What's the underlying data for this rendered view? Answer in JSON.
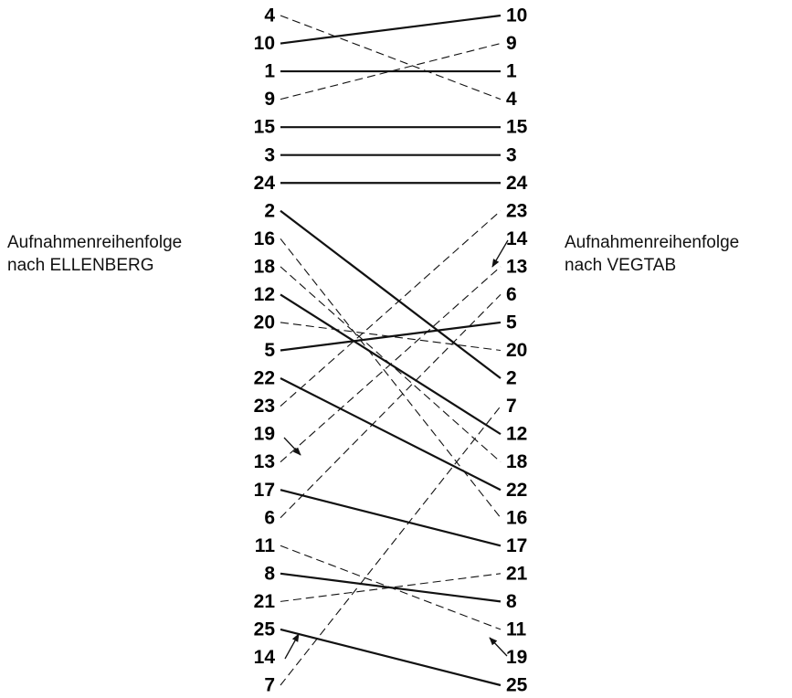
{
  "left_caption": [
    "Aufnahmenreihenfolge",
    "nach ELLENBERG"
  ],
  "right_caption": [
    "Aufnahmenreihenfolge",
    "nach VEGTAB"
  ],
  "left": [
    {
      "label": "4",
      "line": "dashed"
    },
    {
      "label": "10",
      "line": "solid"
    },
    {
      "label": "1",
      "line": "solid"
    },
    {
      "label": "9",
      "line": "dashed"
    },
    {
      "label": "15",
      "line": "solid"
    },
    {
      "label": "3",
      "line": "solid"
    },
    {
      "label": "24",
      "line": "solid"
    },
    {
      "label": "2",
      "line": "solid"
    },
    {
      "label": "16",
      "line": "dashed"
    },
    {
      "label": "18",
      "line": "dashed"
    },
    {
      "label": "12",
      "line": "solid"
    },
    {
      "label": "20",
      "line": "dashed"
    },
    {
      "label": "5",
      "line": "solid"
    },
    {
      "label": "22",
      "line": "solid"
    },
    {
      "label": "23",
      "line": "dashed"
    },
    {
      "label": "19",
      "line": "arrow"
    },
    {
      "label": "13",
      "line": "dashed"
    },
    {
      "label": "17",
      "line": "solid"
    },
    {
      "label": "6",
      "line": "dashed"
    },
    {
      "label": "11",
      "line": "dashed"
    },
    {
      "label": "8",
      "line": "solid"
    },
    {
      "label": "21",
      "line": "dashed"
    },
    {
      "label": "25",
      "line": "solid"
    },
    {
      "label": "14",
      "line": "arrow"
    },
    {
      "label": "7",
      "line": "dashed"
    }
  ],
  "right": [
    "10",
    "9",
    "1",
    "4",
    "15",
    "3",
    "24",
    "23",
    "14",
    "13",
    "6",
    "5",
    "20",
    "2",
    "7",
    "12",
    "18",
    "22",
    "16",
    "17",
    "21",
    "8",
    "11",
    "19",
    "25"
  ]
}
